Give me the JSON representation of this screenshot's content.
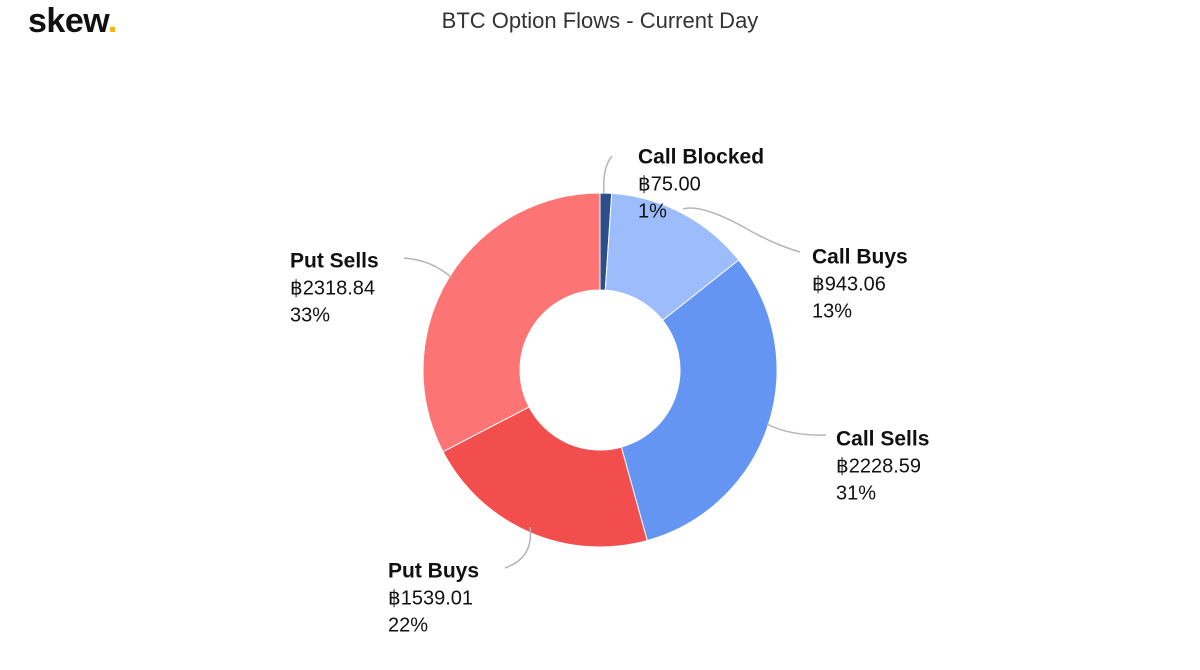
{
  "header": {
    "logo_text": "skew",
    "logo_dot": ".",
    "logo_dot_color": "#f5b400"
  },
  "chart_data": {
    "type": "pie",
    "variant": "donut",
    "title": "BTC Option Flows - Current Day",
    "currency_symbol": "฿",
    "slices": [
      {
        "label": "Call Blocked",
        "value": 75.0,
        "value_text": "฿75.00",
        "percent_text": "1%",
        "color": "#2c4f8a"
      },
      {
        "label": "Call Buys",
        "value": 943.06,
        "value_text": "฿943.06",
        "percent_text": "13%",
        "color": "#9dbcfb"
      },
      {
        "label": "Call Sells",
        "value": 2228.59,
        "value_text": "฿2228.59",
        "percent_text": "31%",
        "color": "#6495f2"
      },
      {
        "label": "Put Buys",
        "value": 1539.01,
        "value_text": "฿1539.01",
        "percent_text": "22%",
        "color": "#f24e4e"
      },
      {
        "label": "Put Sells",
        "value": 2318.84,
        "value_text": "฿2318.84",
        "percent_text": "33%",
        "color": "#fd7474"
      }
    ]
  }
}
